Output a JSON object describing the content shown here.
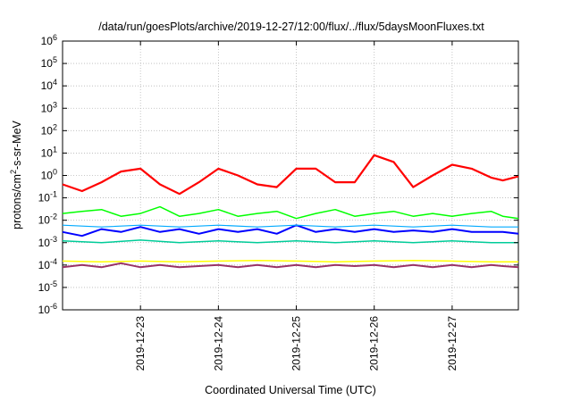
{
  "chart_data": {
    "type": "line",
    "title": "/data/run/goesPlots/archive/2019-12-27/12:00/flux/../flux/5daysMoonFluxes.txt",
    "xlabel": "Coordinated Universal Time (UTC)",
    "ylabel": {
      "base": "protons/cm",
      "sup": "2",
      "rest": "-s-sr-MeV"
    },
    "yscale": "log",
    "ylim": [
      1e-06,
      1000000.0
    ],
    "xlim": [
      0,
      5.85
    ],
    "grid": true,
    "y_ticks": [
      {
        "base": "10",
        "exp": "-6",
        "value": 1e-06
      },
      {
        "base": "10",
        "exp": "-5",
        "value": 1e-05
      },
      {
        "base": "10",
        "exp": "-4",
        "value": 0.0001
      },
      {
        "base": "10",
        "exp": "-3",
        "value": 0.001
      },
      {
        "base": "10",
        "exp": "-2",
        "value": 0.01
      },
      {
        "base": "10",
        "exp": "-1",
        "value": 0.1
      },
      {
        "base": "10",
        "exp": "0",
        "value": 1
      },
      {
        "base": "10",
        "exp": "1",
        "value": 10
      },
      {
        "base": "10",
        "exp": "2",
        "value": 100
      },
      {
        "base": "10",
        "exp": "3",
        "value": 1000
      },
      {
        "base": "10",
        "exp": "4",
        "value": 10000
      },
      {
        "base": "10",
        "exp": "5",
        "value": 100000
      },
      {
        "base": "10",
        "exp": "6",
        "value": 1000000
      }
    ],
    "x_ticks": [
      {
        "label": "2019-12-23",
        "value": 1.0
      },
      {
        "label": "2019-12-24",
        "value": 2.0
      },
      {
        "label": "2019-12-25",
        "value": 3.0
      },
      {
        "label": "2019-12-26",
        "value": 4.0
      },
      {
        "label": "2019-12-27",
        "value": 5.0
      }
    ],
    "series": [
      {
        "color": "#ff0000",
        "width": 2.2,
        "x": [
          0,
          0.25,
          0.5,
          0.75,
          1,
          1.25,
          1.5,
          1.75,
          2,
          2.25,
          2.5,
          2.75,
          3,
          3.25,
          3.5,
          3.75,
          4,
          4.25,
          4.5,
          4.75,
          5,
          5.25,
          5.5,
          5.65,
          5.85
        ],
        "y": [
          0.4,
          0.2,
          0.5,
          1.5,
          2,
          0.4,
          0.15,
          0.5,
          2,
          1,
          0.4,
          0.3,
          2,
          2,
          0.5,
          0.5,
          8,
          4,
          0.3,
          1,
          3,
          2,
          0.8,
          0.6,
          0.9
        ]
      },
      {
        "color": "#00ff00",
        "width": 1.5,
        "x": [
          0,
          0.25,
          0.5,
          0.75,
          1,
          1.25,
          1.5,
          1.75,
          2,
          2.25,
          2.5,
          2.75,
          3,
          3.25,
          3.5,
          3.75,
          4,
          4.25,
          4.5,
          4.75,
          5,
          5.25,
          5.5,
          5.65,
          5.85
        ],
        "y": [
          0.02,
          0.025,
          0.03,
          0.015,
          0.02,
          0.04,
          0.015,
          0.02,
          0.03,
          0.015,
          0.02,
          0.025,
          0.012,
          0.02,
          0.03,
          0.015,
          0.02,
          0.025,
          0.015,
          0.02,
          0.015,
          0.02,
          0.025,
          0.015,
          0.012
        ]
      },
      {
        "color": "#0000ff",
        "width": 2,
        "x": [
          0,
          0.25,
          0.5,
          0.75,
          1,
          1.25,
          1.5,
          1.75,
          2,
          2.25,
          2.5,
          2.75,
          3,
          3.25,
          3.5,
          3.75,
          4,
          4.25,
          4.5,
          4.75,
          5,
          5.25,
          5.5,
          5.65,
          5.85
        ],
        "y": [
          0.003,
          0.002,
          0.004,
          0.003,
          0.005,
          0.003,
          0.004,
          0.0025,
          0.004,
          0.003,
          0.004,
          0.0025,
          0.006,
          0.003,
          0.004,
          0.003,
          0.004,
          0.003,
          0.0035,
          0.003,
          0.004,
          0.003,
          0.003,
          0.003,
          0.0025
        ]
      },
      {
        "color": "#00aaff",
        "width": 1.2,
        "x": [
          0,
          0.5,
          1,
          1.5,
          2,
          2.5,
          3,
          3.5,
          4,
          4.5,
          5,
          5.5,
          5.85
        ],
        "y": [
          0.006,
          0.005,
          0.006,
          0.005,
          0.006,
          0.005,
          0.006,
          0.005,
          0.006,
          0.005,
          0.006,
          0.005,
          0.005
        ]
      },
      {
        "color": "#00cc99",
        "width": 1.5,
        "x": [
          0,
          0.5,
          1,
          1.5,
          2,
          2.5,
          3,
          3.5,
          4,
          4.5,
          5,
          5.5,
          5.85
        ],
        "y": [
          0.0012,
          0.001,
          0.0013,
          0.001,
          0.0012,
          0.001,
          0.0012,
          0.001,
          0.0012,
          0.001,
          0.0012,
          0.001,
          0.001
        ]
      },
      {
        "color": "#ffff00",
        "width": 1.5,
        "x": [
          0,
          0.5,
          1,
          1.5,
          2,
          2.5,
          3,
          3.5,
          4,
          4.5,
          5,
          5.5,
          5.85
        ],
        "y": [
          0.00015,
          0.00014,
          0.00015,
          0.00014,
          0.00015,
          0.00016,
          0.00015,
          0.00014,
          0.00015,
          0.00016,
          0.00015,
          0.00014,
          0.00014
        ]
      },
      {
        "color": "#993366",
        "width": 2,
        "x": [
          0,
          0.25,
          0.5,
          0.75,
          1,
          1.25,
          1.5,
          1.75,
          2,
          2.25,
          2.5,
          2.75,
          3,
          3.25,
          3.5,
          3.75,
          4,
          4.25,
          4.5,
          4.75,
          5,
          5.25,
          5.5,
          5.65,
          5.85
        ],
        "y": [
          8e-05,
          0.0001,
          8e-05,
          0.00012,
          8e-05,
          0.0001,
          8e-05,
          9e-05,
          0.0001,
          8e-05,
          0.0001,
          8e-05,
          0.0001,
          8e-05,
          0.0001,
          9e-05,
          0.0001,
          8e-05,
          0.0001,
          8e-05,
          0.0001,
          8e-05,
          0.0001,
          9e-05,
          8e-05
        ]
      }
    ]
  }
}
